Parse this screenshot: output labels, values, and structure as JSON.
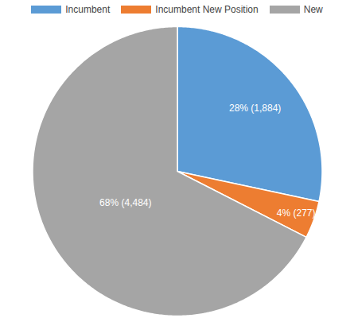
{
  "chart_data": {
    "type": "pie",
    "categories": [
      "Incumbent",
      "Incumbent New Position",
      "New"
    ],
    "values": [
      1884,
      277,
      4484
    ],
    "value_labels": [
      "28% (1,884)",
      "4% (277)",
      "68% (4,484)"
    ],
    "colors": [
      "#5b9bd5",
      "#ed7d31",
      "#a5a5a5"
    ],
    "legend": "top",
    "data_labels": true
  }
}
